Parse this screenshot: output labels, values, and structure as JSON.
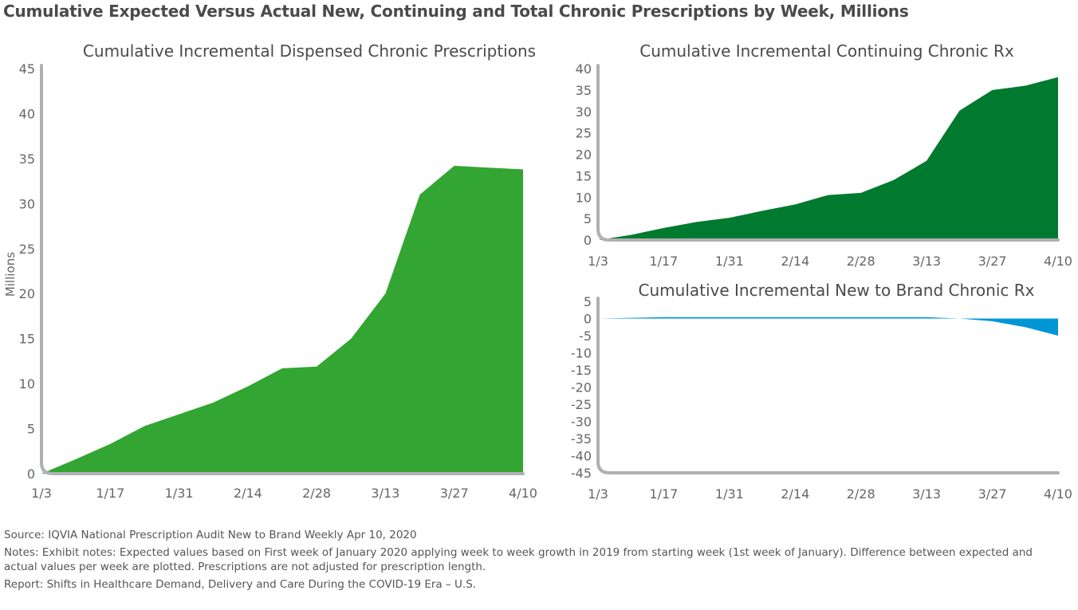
{
  "title": "Cumulative Expected Versus Actual New, Continuing and Total Chronic Prescriptions by Week, Millions",
  "colors": {
    "dispensed": "#33a532",
    "continuing": "#007a2e",
    "new_to_brand": "#0096d6",
    "axis": "#b0b0b4"
  },
  "chart_data": [
    {
      "type": "area",
      "title": "Cumulative Incremental Dispensed Chronic Prescriptions",
      "ylabel": "Millions",
      "x_tick_labels": [
        "1/3",
        "1/17",
        "1/31",
        "2/14",
        "2/28",
        "3/13",
        "3/27",
        "4/10"
      ],
      "x": [
        "1/3",
        "1/10",
        "1/17",
        "1/24",
        "1/31",
        "2/7",
        "2/14",
        "2/21",
        "2/28",
        "3/6",
        "3/13",
        "3/20",
        "3/27",
        "4/3",
        "4/10"
      ],
      "values": [
        0,
        1.6,
        3.3,
        5.3,
        6.6,
        7.9,
        9.7,
        11.7,
        11.9,
        15.0,
        20.0,
        31.0,
        34.2,
        34.0,
        33.8
      ],
      "ylim": [
        0,
        45
      ],
      "y_ticks": [
        0,
        5,
        10,
        15,
        20,
        25,
        30,
        35,
        40,
        45
      ],
      "color": "#33a532"
    },
    {
      "type": "area",
      "title": "Cumulative Incremental Continuing Chronic Rx",
      "ylabel": "",
      "x_tick_labels": [
        "1/3",
        "1/17",
        "1/31",
        "2/14",
        "2/28",
        "3/13",
        "3/27",
        "4/10"
      ],
      "x": [
        "1/3",
        "1/10",
        "1/17",
        "1/24",
        "1/31",
        "2/7",
        "2/14",
        "2/21",
        "2/28",
        "3/6",
        "3/13",
        "3/20",
        "3/27",
        "4/3",
        "4/10"
      ],
      "values": [
        0,
        1.2,
        2.8,
        4.2,
        5.2,
        6.8,
        8.3,
        10.5,
        11.0,
        14.0,
        18.5,
        30.2,
        35.0,
        36.0,
        38.0
      ],
      "ylim": [
        0,
        40
      ],
      "y_ticks": [
        0,
        5,
        10,
        15,
        20,
        25,
        30,
        35,
        40
      ],
      "color": "#007a2e"
    },
    {
      "type": "area",
      "title": "Cumulative Incremental New to Brand Chronic Rx",
      "ylabel": "",
      "x_tick_labels": [
        "1/3",
        "1/17",
        "1/31",
        "2/14",
        "2/28",
        "3/13",
        "3/27",
        "4/10"
      ],
      "x": [
        "1/3",
        "1/10",
        "1/17",
        "1/24",
        "1/31",
        "2/7",
        "2/14",
        "2/21",
        "2/28",
        "3/6",
        "3/13",
        "3/20",
        "3/27",
        "4/3",
        "4/10"
      ],
      "values": [
        0,
        0.2,
        0.4,
        0.4,
        0.4,
        0.4,
        0.4,
        0.4,
        0.4,
        0.4,
        0.4,
        0,
        -0.8,
        -2.5,
        -5.0
      ],
      "ylim": [
        -45,
        5
      ],
      "y_ticks": [
        5,
        0,
        -5,
        -10,
        -15,
        -20,
        -25,
        -30,
        -35,
        -40,
        -45
      ],
      "color": "#0096d6"
    }
  ],
  "notes": {
    "source": "Source: IQVIA National Prescription Audit New to Brand Weekly Apr 10, 2020",
    "notes": "Notes: Exhibit notes: Expected values based on First week of January 2020 applying week to week growth in 2019 from starting week (1st week of January). Difference between expected and actual values per week are plotted. Prescriptions are not adjusted for prescription length.",
    "report": "Report: Shifts in Healthcare Demand, Delivery and Care During the COVID-19 Era – U.S."
  }
}
